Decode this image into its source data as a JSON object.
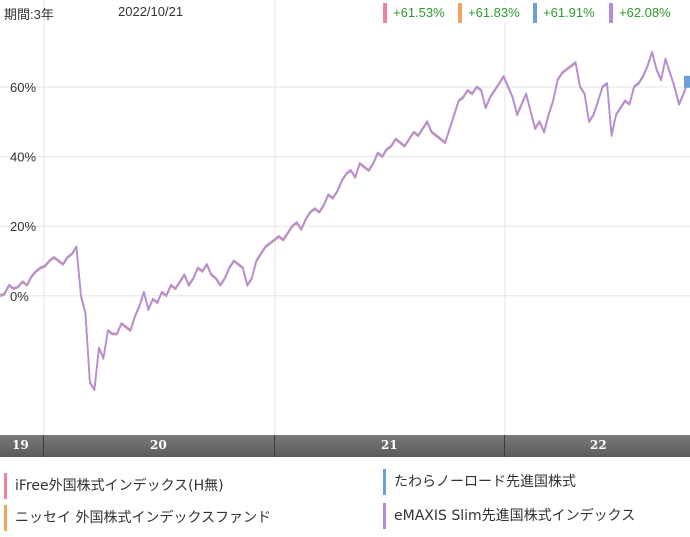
{
  "header": {
    "period": "期間:3年",
    "date": "2022/10/21"
  },
  "colors": {
    "series1": "#f0829a",
    "series2": "#f3a35c",
    "series3": "#6f9fd8",
    "series4": "#b38be0"
  },
  "badges": [
    {
      "text": "+61.53%",
      "color": "#f0829a"
    },
    {
      "text": "+61.83%",
      "color": "#f3a35c"
    },
    {
      "text": "+61.91%",
      "color": "#6f9fd8"
    },
    {
      "text": "+62.08%",
      "color": "#b38be0"
    }
  ],
  "chart_data": {
    "type": "line",
    "ylim": [
      -40,
      85
    ],
    "yticks": [
      {
        "value": 60,
        "label": "60%"
      },
      {
        "value": 40,
        "label": "40%"
      },
      {
        "value": 20,
        "label": "20%"
      },
      {
        "value": 0,
        "label": "0%"
      }
    ],
    "xticks": [
      "19",
      "20",
      "21",
      "22"
    ],
    "grid": true,
    "legend_position": "bottom",
    "series": [
      {
        "name": "iFree外国株式インデックス(H無)",
        "color": "#f0829a"
      },
      {
        "name": "たわらノーロード先進国株式",
        "color": "#6f9fd8"
      },
      {
        "name": "ニッセイ 外国株式インデックスファンド",
        "color": "#f3a35c"
      },
      {
        "name": "eMAXIS Slim先進国株式インデックス",
        "color": "#b38be0"
      }
    ],
    "values": [
      0,
      0.5,
      3,
      2,
      2.5,
      4,
      3,
      5.5,
      7,
      8,
      8.5,
      10,
      11,
      10,
      9,
      11,
      12,
      14,
      0,
      -5,
      -25,
      -27,
      -15,
      -18,
      -10,
      -11,
      -11,
      -8,
      -9,
      -10,
      -6,
      -3,
      1,
      -4,
      -1,
      -2,
      1,
      0,
      3,
      2,
      4,
      6,
      3,
      5,
      8,
      7,
      9,
      6,
      5,
      3,
      5,
      8,
      10,
      9,
      8,
      3,
      5,
      10,
      12,
      14,
      15,
      16,
      17,
      16,
      18,
      20,
      21,
      19,
      22,
      24,
      25,
      24,
      26,
      29,
      28,
      30,
      33,
      35,
      36,
      34,
      38,
      37,
      36,
      38,
      41,
      40,
      42,
      43,
      45,
      44,
      43,
      45,
      47,
      46,
      48,
      50,
      47,
      46,
      45,
      44,
      48,
      52,
      56,
      57,
      59,
      58,
      60,
      59,
      54,
      57,
      59,
      61,
      63,
      60,
      57,
      52,
      55,
      58,
      53,
      48,
      50,
      47,
      52,
      56,
      62,
      64,
      65,
      66,
      67,
      60,
      58,
      50,
      52,
      56,
      60,
      61,
      46,
      52,
      54,
      56,
      55,
      60,
      61,
      63,
      66,
      70,
      65,
      62,
      68,
      64,
      60,
      55,
      58,
      61.5
    ]
  },
  "legend": [
    {
      "label": "iFree外国株式インデックス(H無)",
      "color": "#f0829a"
    },
    {
      "label": "たわらノーロード先進国株式",
      "color": "#6f9fd8"
    },
    {
      "label": "ニッセイ 外国株式インデックスファンド",
      "color": "#f3a35c"
    },
    {
      "label": "eMAXIS Slim先進国株式インデックス",
      "color": "#b38be0"
    }
  ]
}
